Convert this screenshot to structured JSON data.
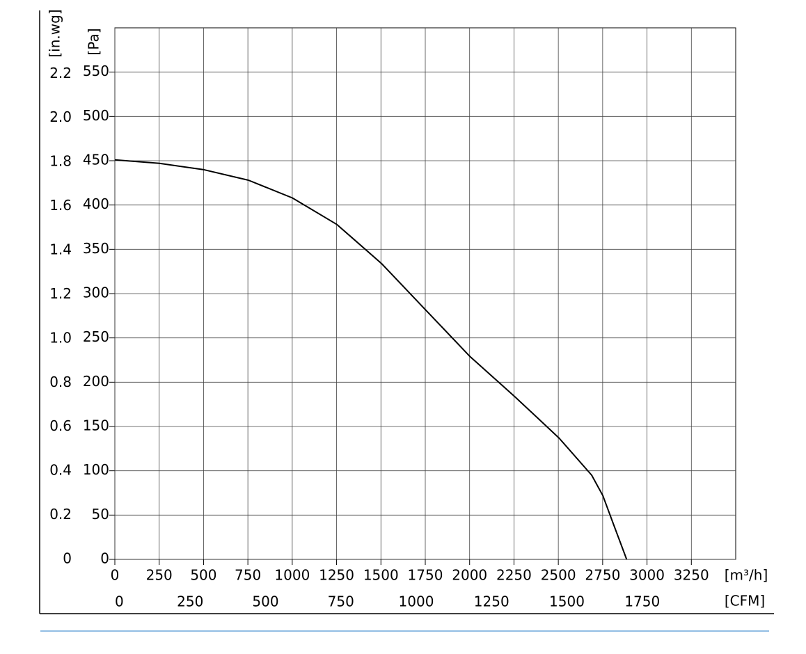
{
  "chart_data": {
    "type": "line",
    "x": [
      0,
      251,
      498,
      753,
      1001,
      1252,
      1503,
      1750,
      2002,
      2253,
      2504,
      2688,
      2751,
      2814,
      2885
    ],
    "values": [
      451,
      447,
      440,
      428,
      408,
      378,
      334,
      282,
      229,
      184,
      137,
      95,
      72,
      38,
      0
    ],
    "color": "#000000",
    "xlim": [
      0,
      3500
    ],
    "xticks": [
      0,
      250,
      500,
      750,
      1000,
      1250,
      1500,
      1750,
      2000,
      2250,
      2500,
      2750,
      3000,
      3250
    ],
    "x2lim": [
      0,
      2060
    ],
    "x2ticks": [
      0,
      250,
      500,
      750,
      1000,
      1250,
      1500,
      1750
    ],
    "ylim": [
      0,
      600
    ],
    "yticks": [
      0,
      50,
      100,
      150,
      200,
      250,
      300,
      350,
      400,
      450,
      500,
      550
    ],
    "y2lim": [
      0,
      2.409
    ],
    "y2ticks": [
      0,
      0.2,
      0.4,
      0.6,
      0.8,
      {
        "value": 1,
        "label": "1.0"
      },
      1.2,
      1.4,
      1.6,
      1.8,
      {
        "value": 2,
        "label": "2.0"
      },
      2.2
    ],
    "xlabel": "[m³/h]",
    "x2label": "[CFM]",
    "ylabel": "[Pa]",
    "y2label": "[in.wg]",
    "grid": true
  }
}
